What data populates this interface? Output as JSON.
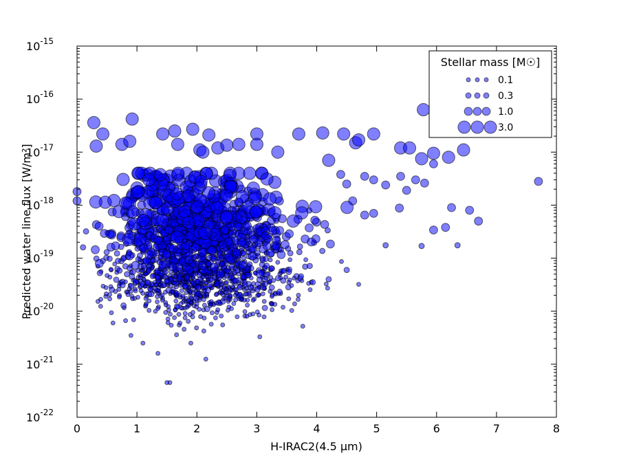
{
  "chart_data": {
    "type": "scatter",
    "xlabel": "H-IRAC2(4.5 μm)",
    "ylabel": "Predicted water line flux [W/m²]",
    "xlim": [
      0,
      8
    ],
    "ylim": [
      1e-22,
      1e-15
    ],
    "yscale": "log",
    "xticks": [
      "0",
      "1",
      "2",
      "3",
      "4",
      "5",
      "6",
      "7",
      "8"
    ],
    "yticks": [
      {
        "base": "10",
        "exp": "-22"
      },
      {
        "base": "10",
        "exp": "-21"
      },
      {
        "base": "10",
        "exp": "-20"
      },
      {
        "base": "10",
        "exp": "-19"
      },
      {
        "base": "10",
        "exp": "-18"
      },
      {
        "base": "10",
        "exp": "-17"
      },
      {
        "base": "10",
        "exp": "-16"
      },
      {
        "base": "10",
        "exp": "-15"
      }
    ],
    "grid": false,
    "marker_color": "#0000ff",
    "legend": {
      "title": "Stellar mass [M☉]",
      "placement": "top-right",
      "entries": [
        {
          "label": "0.1",
          "mass": 0.1
        },
        {
          "label": "0.3",
          "mass": 0.3
        },
        {
          "label": "1.0",
          "mass": 1.0
        },
        {
          "label": "3.0",
          "mass": 3.0
        }
      ]
    },
    "series": [
      {
        "size_encoding": "stellar mass",
        "points": [
          {
            "x": 0.28,
            "y": 3.6e-17,
            "mass": 3.0
          },
          {
            "x": 0.32,
            "y": 1.3e-17,
            "mass": 3.0
          },
          {
            "x": 0.43,
            "y": 2.2e-17,
            "mass": 3.0
          },
          {
            "x": 0.75,
            "y": 1.4e-17,
            "mass": 3.0
          },
          {
            "x": 0.88,
            "y": 1.6e-17,
            "mass": 3.0
          },
          {
            "x": 0.92,
            "y": 4.2e-17,
            "mass": 3.0
          },
          {
            "x": 1.43,
            "y": 2.2e-17,
            "mass": 3.0
          },
          {
            "x": 1.63,
            "y": 2.5e-17,
            "mass": 3.0
          },
          {
            "x": 1.68,
            "y": 1.4e-17,
            "mass": 3.0
          },
          {
            "x": 1.93,
            "y": 2.7e-17,
            "mass": 3.0
          },
          {
            "x": 2.05,
            "y": 1.1e-17,
            "mass": 3.0
          },
          {
            "x": 2.1,
            "y": 1e-17,
            "mass": 3.0
          },
          {
            "x": 2.2,
            "y": 2.1e-17,
            "mass": 3.0
          },
          {
            "x": 2.35,
            "y": 1.2e-17,
            "mass": 3.0
          },
          {
            "x": 2.5,
            "y": 1.35e-17,
            "mass": 3.0
          },
          {
            "x": 2.7,
            "y": 1.4e-17,
            "mass": 3.0
          },
          {
            "x": 3.0,
            "y": 2.2e-17,
            "mass": 3.0
          },
          {
            "x": 3.0,
            "y": 1.4e-17,
            "mass": 3.0
          },
          {
            "x": 3.35,
            "y": 1e-17,
            "mass": 3.0
          },
          {
            "x": 3.7,
            "y": 2.2e-17,
            "mass": 3.0
          },
          {
            "x": 4.1,
            "y": 2.3e-17,
            "mass": 3.0
          },
          {
            "x": 4.45,
            "y": 2.2e-17,
            "mass": 3.0
          },
          {
            "x": 4.65,
            "y": 1.5e-17,
            "mass": 3.0
          },
          {
            "x": 4.7,
            "y": 1.7e-17,
            "mass": 3.0
          },
          {
            "x": 4.95,
            "y": 2.2e-17,
            "mass": 3.0
          },
          {
            "x": 5.4,
            "y": 1.2e-17,
            "mass": 3.0
          },
          {
            "x": 5.55,
            "y": 1.2e-17,
            "mass": 3.0
          },
          {
            "x": 5.75,
            "y": 7.5e-18,
            "mass": 3.0
          },
          {
            "x": 5.78,
            "y": 6.3e-17,
            "mass": 3.0
          },
          {
            "x": 5.95,
            "y": 9.5e-18,
            "mass": 3.0
          },
          {
            "x": 6.2,
            "y": 8e-18,
            "mass": 3.0
          },
          {
            "x": 6.45,
            "y": 1.1e-17,
            "mass": 3.0
          },
          {
            "x": 4.2,
            "y": 7e-18,
            "mass": 3.0
          },
          {
            "x": 4.4,
            "y": 3.8e-18,
            "mass": 1.0
          },
          {
            "x": 4.5,
            "y": 2.5e-18,
            "mass": 1.0
          },
          {
            "x": 4.8,
            "y": 3.5e-18,
            "mass": 1.0
          },
          {
            "x": 4.95,
            "y": 3e-18,
            "mass": 1.0
          },
          {
            "x": 5.15,
            "y": 2.4e-18,
            "mass": 1.0
          },
          {
            "x": 5.4,
            "y": 3.5e-18,
            "mass": 1.0
          },
          {
            "x": 5.5,
            "y": 1.9e-18,
            "mass": 1.0
          },
          {
            "x": 5.65,
            "y": 3e-18,
            "mass": 1.0
          },
          {
            "x": 5.8,
            "y": 2.6e-18,
            "mass": 1.0
          },
          {
            "x": 5.95,
            "y": 6e-18,
            "mass": 1.0
          },
          {
            "x": 7.7,
            "y": 2.8e-18,
            "mass": 1.0
          },
          {
            "x": 5.38,
            "y": 8.8e-19,
            "mass": 1.0
          },
          {
            "x": 6.25,
            "y": 9e-19,
            "mass": 1.0
          },
          {
            "x": 6.55,
            "y": 8e-19,
            "mass": 1.0
          },
          {
            "x": 6.7,
            "y": 5e-19,
            "mass": 1.0
          },
          {
            "x": 5.95,
            "y": 3.4e-19,
            "mass": 1.0
          },
          {
            "x": 6.15,
            "y": 3.8e-19,
            "mass": 1.0
          },
          {
            "x": 4.8,
            "y": 6.5e-19,
            "mass": 1.0
          },
          {
            "x": 4.95,
            "y": 7e-19,
            "mass": 1.0
          },
          {
            "x": 4.6,
            "y": 1.2e-18,
            "mass": 1.0
          },
          {
            "x": 5.15,
            "y": 1.75e-19,
            "mass": 0.3
          },
          {
            "x": 5.75,
            "y": 1.7e-19,
            "mass": 0.3
          },
          {
            "x": 6.35,
            "y": 1.75e-19,
            "mass": 0.3
          },
          {
            "x": 4.5,
            "y": 6e-20,
            "mass": 0.3
          },
          {
            "x": 4.7,
            "y": 3.2e-20,
            "mass": 0.1
          },
          {
            "x": 4.2,
            "y": 4e-20,
            "mass": 0.3
          },
          {
            "x": 3.05,
            "y": 3.3e-21,
            "mass": 0.1
          },
          {
            "x": 2.15,
            "y": 1.25e-21,
            "mass": 0.1
          },
          {
            "x": 1.5,
            "y": 4.5e-22,
            "mass": 0.1
          },
          {
            "x": 1.55,
            "y": 4.5e-22,
            "mass": 0.1
          },
          {
            "x": 1.35,
            "y": 1.6e-21,
            "mass": 0.1
          },
          {
            "x": 0.6,
            "y": 6e-21,
            "mass": 0.1
          },
          {
            "x": 0.9,
            "y": 3.5e-21,
            "mass": 0.1
          },
          {
            "x": 1.1,
            "y": 2.5e-21,
            "mass": 0.1
          },
          {
            "x": 1.9,
            "y": 2.5e-21,
            "mass": 0.1
          },
          {
            "x": 0.0,
            "y": 1.8e-18,
            "mass": 1.0
          },
          {
            "x": 0.0,
            "y": 1.2e-18,
            "mass": 1.0
          },
          {
            "x": 0.15,
            "y": 3.2e-19,
            "mass": 0.3
          },
          {
            "x": 0.1,
            "y": 1.6e-19,
            "mass": 0.3
          }
        ],
        "cluster": {
          "note": "dense cloud of several hundred points, x 0.3–4.5, y ~1e-20 to 4e-18, mass-dependent flux",
          "x_range": [
            0.3,
            4.6
          ],
          "x_peak": 2.0,
          "count": 1800
        }
      }
    ]
  }
}
